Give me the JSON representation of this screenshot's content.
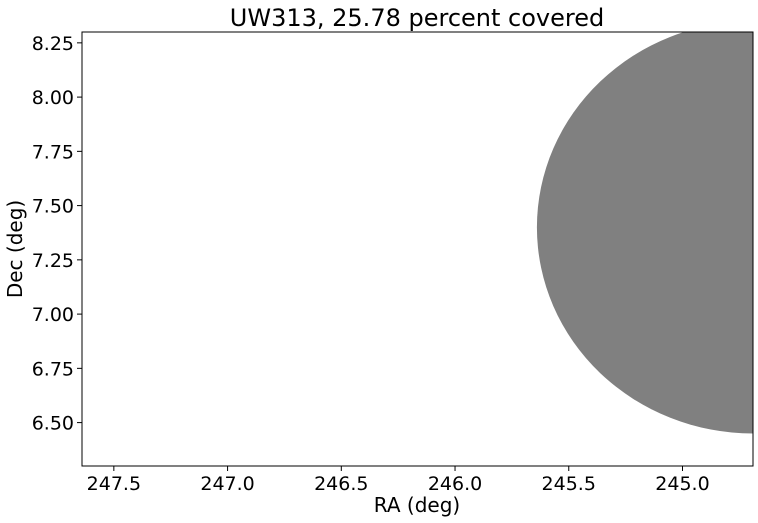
{
  "chart_data": {
    "type": "scatter",
    "title": "UW313, 25.78 percent covered",
    "xlabel": "RA (deg)",
    "ylabel": "Dec (deg)",
    "xlim": [
      247.64,
      244.69
    ],
    "ylim": [
      6.3,
      8.3
    ],
    "x_inverted": true,
    "xticks": [
      {
        "value": 247.5,
        "label": "247.5"
      },
      {
        "value": 247.0,
        "label": "247.0"
      },
      {
        "value": 246.5,
        "label": "246.5"
      },
      {
        "value": 246.0,
        "label": "246.0"
      },
      {
        "value": 245.5,
        "label": "245.5"
      },
      {
        "value": 245.0,
        "label": "245.0"
      }
    ],
    "yticks": [
      {
        "value": 6.5,
        "label": "6.50"
      },
      {
        "value": 6.75,
        "label": "6.75"
      },
      {
        "value": 7.0,
        "label": "7.00"
      },
      {
        "value": 7.25,
        "label": "7.25"
      },
      {
        "value": 7.5,
        "label": "7.50"
      },
      {
        "value": 7.75,
        "label": "7.75"
      },
      {
        "value": 8.0,
        "label": "8.00"
      },
      {
        "value": 8.25,
        "label": "8.25"
      }
    ],
    "grid": false,
    "regions": [
      {
        "shape": "circle",
        "center_ra": 244.69,
        "center_dec": 7.4,
        "radius_deg": 0.95,
        "color": "#808080"
      }
    ]
  }
}
